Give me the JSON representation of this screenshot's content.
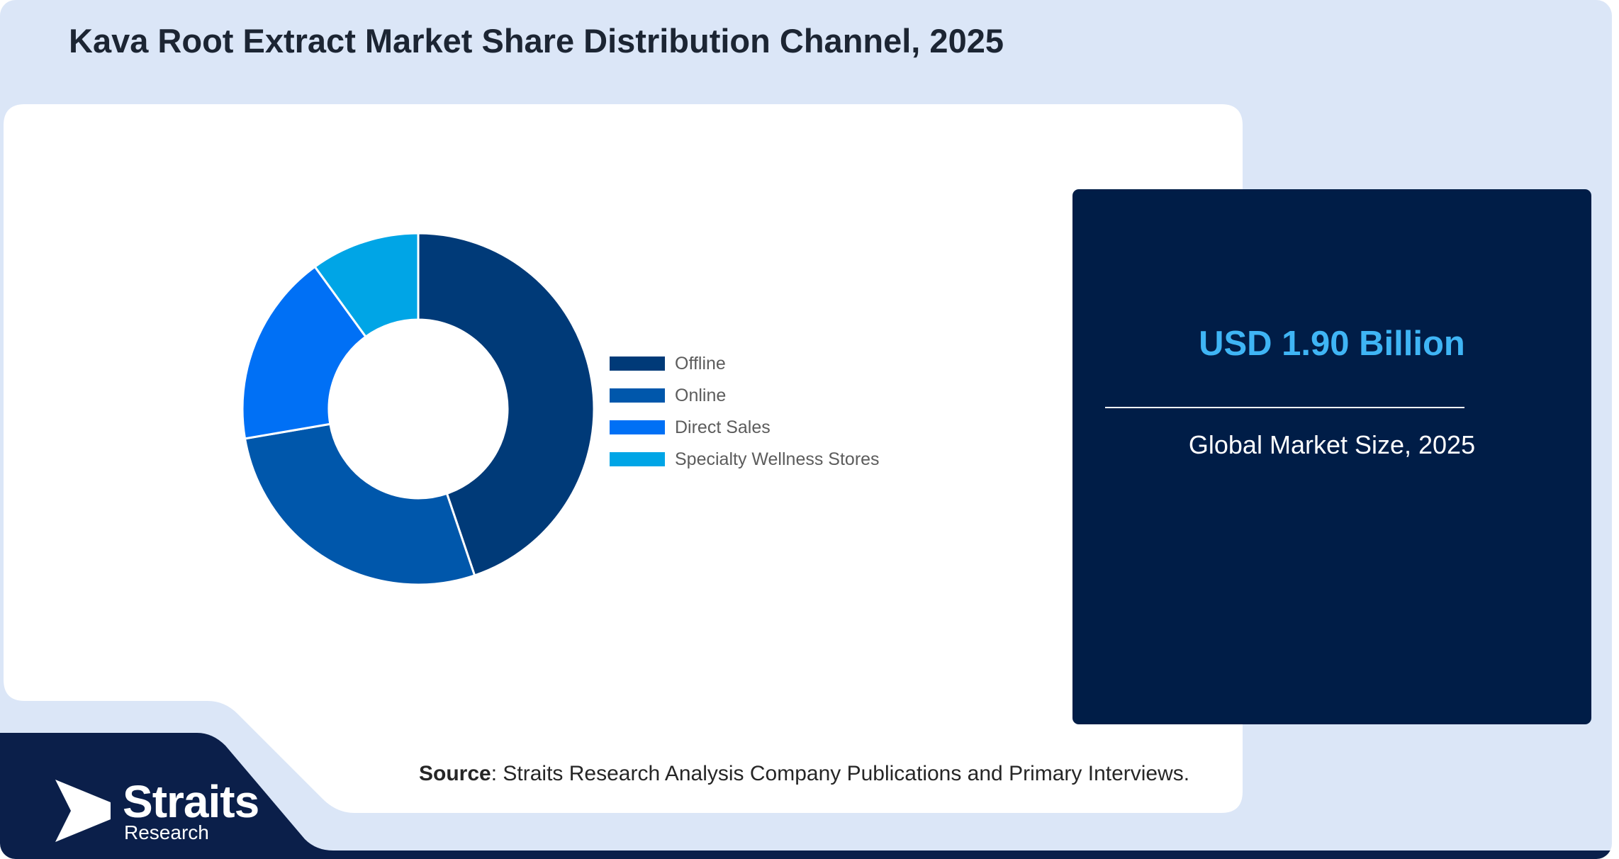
{
  "title": "Kava Root Extract Market Share Distribution Channel, 2025",
  "chart_data": {
    "type": "pie",
    "variant": "donut",
    "categories": [
      "Offline",
      "Online",
      "Direct Sales",
      "Specialty Wellness Stores"
    ],
    "values": [
      44.8,
      27.5,
      17.7,
      10.0
    ],
    "colors": [
      "#003a78",
      "#0057ab",
      "#0070f5",
      "#00a5e6"
    ],
    "legend": "right"
  },
  "stat": {
    "value": "USD 1.90 Billion",
    "label": "Global Market Size, 2025"
  },
  "source": {
    "key": "Source",
    "text": ": Straits Research Analysis Company Publications and Primary Interviews."
  },
  "logo": {
    "name": "Straits",
    "sub": "Research"
  },
  "colors": {
    "background": "#dbe6f7",
    "card": "#ffffff",
    "stat_box": "#001d47",
    "accent": "#3fb5f5",
    "band": "#0b1f4a"
  }
}
